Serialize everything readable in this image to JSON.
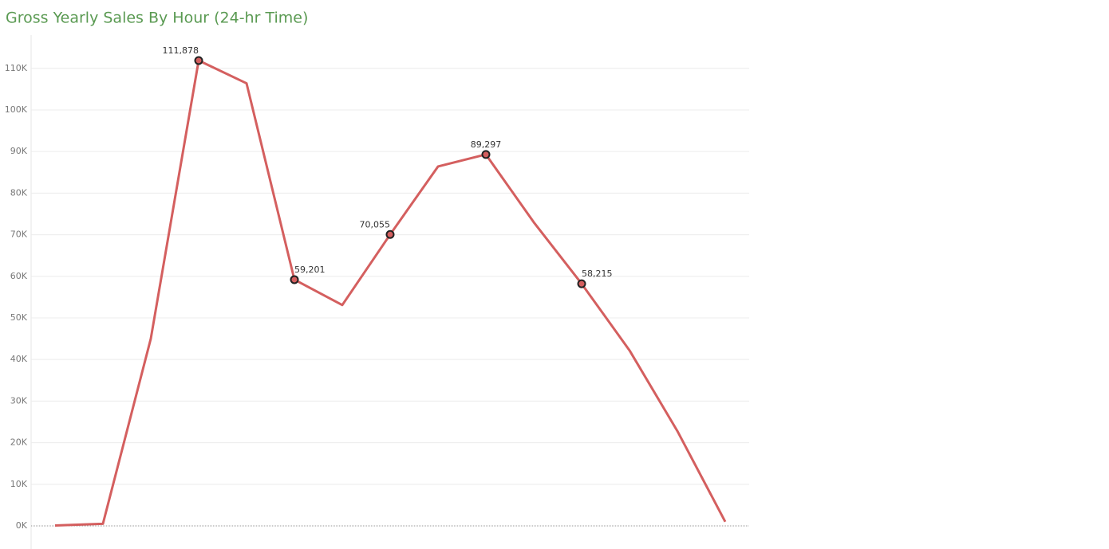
{
  "chart_data": {
    "type": "line",
    "title": "Gross Yearly Sales By Hour (24-hr Time)",
    "categories": [
      null,
      null,
      null,
      null,
      null,
      null,
      null,
      null,
      null,
      null,
      null,
      null,
      null,
      null,
      null
    ],
    "series": [
      {
        "name": null,
        "color": "#d45f5f",
        "values": [
          100,
          500,
          45000,
          111878,
          106400,
          59201,
          53100,
          70055,
          86400,
          89297,
          73000,
          58215,
          42200,
          22800,
          1000
        ],
        "value_labels": [
          null,
          null,
          null,
          "111,878",
          null,
          "59,201",
          null,
          "70,055",
          null,
          "89,297",
          null,
          "58,215",
          null,
          null,
          null
        ]
      }
    ],
    "ylim": [
      0,
      118000
    ],
    "yticks": [
      {
        "value": 0,
        "label": "0K"
      },
      {
        "value": 10000,
        "label": "10K"
      },
      {
        "value": 20000,
        "label": "20K"
      },
      {
        "value": 30000,
        "label": "30K"
      },
      {
        "value": 40000,
        "label": "40K"
      },
      {
        "value": 50000,
        "label": "50K"
      },
      {
        "value": 60000,
        "label": "60K"
      },
      {
        "value": 70000,
        "label": "70K"
      },
      {
        "value": 80000,
        "label": "80K"
      },
      {
        "value": 90000,
        "label": "90K"
      },
      {
        "value": 100000,
        "label": "100K"
      },
      {
        "value": 110000,
        "label": "110K"
      }
    ],
    "grid": true
  }
}
